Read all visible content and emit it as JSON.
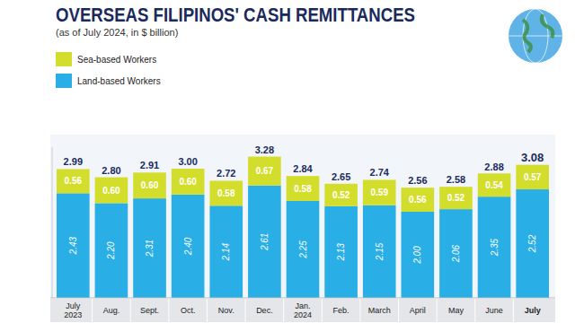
{
  "chart_data": {
    "type": "bar",
    "title": "OVERSEAS FILIPINOS' CASH REMITTANCES",
    "subtitle": "(as of July 2024, in $ billion)",
    "categories": [
      "July 2023",
      "Aug.",
      "Sept.",
      "Oct.",
      "Nov.",
      "Dec.",
      "Jan. 2024",
      "Feb.",
      "March",
      "April",
      "May",
      "June",
      "July"
    ],
    "series": [
      {
        "name": "Land-based Workers",
        "color": "#29aee6",
        "values": [
          2.43,
          2.2,
          2.31,
          2.4,
          2.14,
          2.61,
          2.25,
          2.13,
          2.15,
          2.0,
          2.06,
          2.35,
          2.52
        ],
        "value_labels": [
          "2.43",
          "2.20",
          "2.31",
          "2.40",
          "2.14",
          "2.61",
          "2.25",
          "2.13",
          "2.15",
          "2.00",
          "2.06",
          "2.35",
          "2.52"
        ]
      },
      {
        "name": "Sea-based Workers",
        "color": "#d3de2c",
        "values": [
          0.56,
          0.6,
          0.6,
          0.6,
          0.58,
          0.67,
          0.58,
          0.52,
          0.59,
          0.56,
          0.52,
          0.54,
          0.57
        ],
        "value_labels": [
          "0.56",
          "0.60",
          "0.60",
          "0.60",
          "0.58",
          "0.67",
          "0.58",
          "0.52",
          "0.59",
          "0.56",
          "0.52",
          "0.54",
          "0.57"
        ]
      }
    ],
    "totals": [
      2.99,
      2.8,
      2.91,
      3.0,
      2.72,
      3.28,
      2.84,
      2.65,
      2.74,
      2.56,
      2.58,
      2.88,
      3.08
    ],
    "total_labels": [
      "2.99",
      "2.80",
      "2.91",
      "3.00",
      "2.72",
      "3.28",
      "2.84",
      "2.65",
      "2.74",
      "2.56",
      "2.58",
      "2.88",
      "3.08"
    ],
    "ylim": [
      0,
      3.5
    ],
    "stacked": true,
    "data_labels": true,
    "tick_labels": false,
    "legend": "top-left"
  }
}
